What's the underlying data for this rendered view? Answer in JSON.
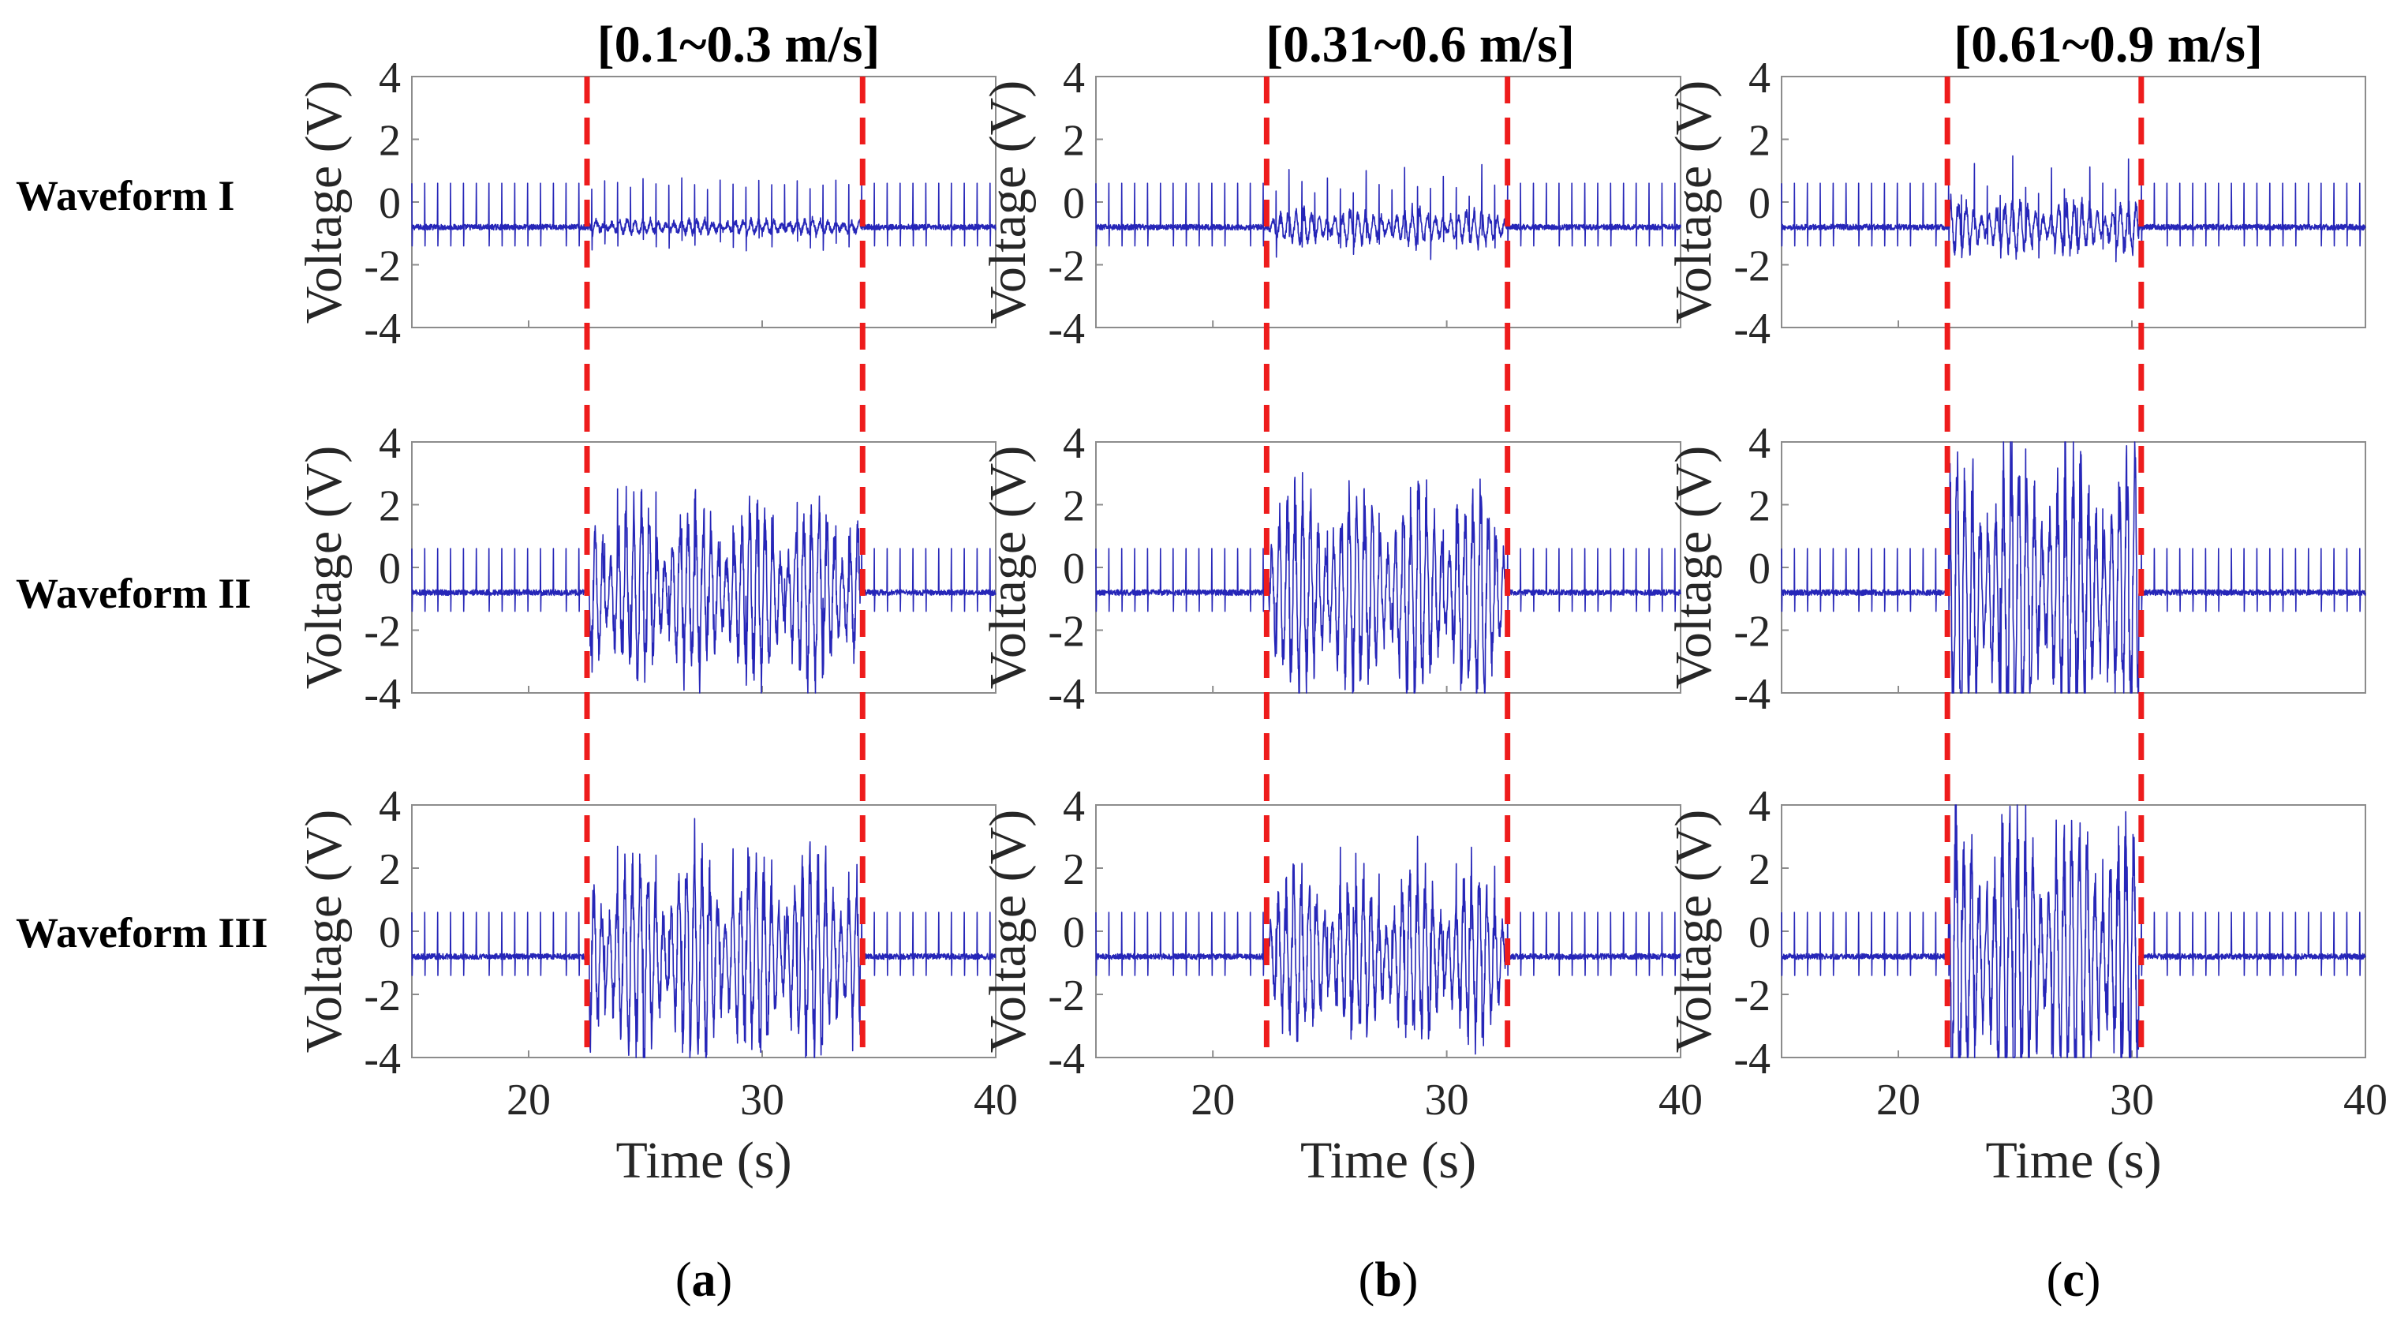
{
  "chart_data": {
    "type": "line",
    "description_units": {
      "x": "Time (s)",
      "y": "Voltage (V)"
    },
    "xlim": [
      15,
      40
    ],
    "ylim": [
      -4,
      4
    ],
    "xticks": [
      20,
      30,
      40
    ],
    "yticks": [
      4,
      2,
      0,
      -2,
      -4
    ],
    "xlabel": "Time (s)",
    "ylabel": "Voltage (V)",
    "row_labels": [
      "Waveform I",
      "Waveform II",
      "Waveform III"
    ],
    "columns": [
      {
        "title": "[0.1~0.3 m/s]",
        "panel_label": {
          "open": "(",
          "letter": "a",
          "close": ")"
        },
        "marker_times": [
          22.5,
          34.3
        ],
        "bursts": [
          {
            "start": 22.6,
            "end": 34.2,
            "amplitude": [
              0.25,
              3.0,
              3.4
            ]
          }
        ]
      },
      {
        "title": "[0.31~0.6 m/s]",
        "panel_label": {
          "open": "(",
          "letter": "b",
          "close": ")"
        },
        "marker_times": [
          22.3,
          32.6
        ],
        "bursts": [
          {
            "start": 22.4,
            "end": 32.5,
            "amplitude": [
              0.6,
              3.5,
              2.8
            ]
          }
        ]
      },
      {
        "title": "[0.61~0.9 m/s]",
        "panel_label": {
          "open": "(",
          "letter": "c",
          "close": ")"
        },
        "marker_times": [
          22.1,
          30.4
        ],
        "bursts": [
          {
            "start": 22.2,
            "end": 30.3,
            "amplitude": [
              0.9,
              4.8,
              4.8
            ]
          }
        ]
      }
    ],
    "series_style": {
      "color": "#2626b8",
      "baseline": -0.8,
      "spike_period_s": 0.55,
      "spike_high": 0.6,
      "spike_low": -1.4
    },
    "marker_style": {
      "color": "#ee1c1c",
      "dash": "dashed"
    }
  }
}
